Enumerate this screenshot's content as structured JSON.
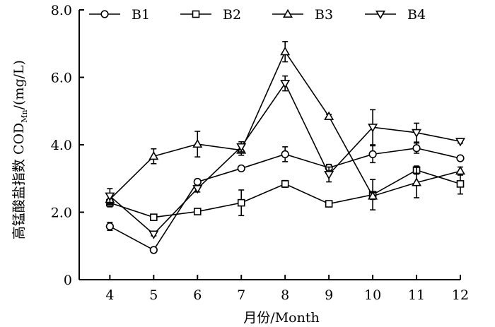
{
  "chart_data": {
    "type": "line",
    "title": "",
    "xlabel": "月份/Month",
    "ylabel": {
      "main": "高锰酸盐指数 COD",
      "sub": "Mn",
      "unit": "/(mg/L)"
    },
    "x": [
      4,
      5,
      6,
      7,
      8,
      9,
      10,
      11,
      12
    ],
    "x_tick_labels": [
      "4",
      "5",
      "6",
      "7",
      "8",
      "9",
      "10",
      "11",
      "12"
    ],
    "xlim": [
      3.3,
      12
    ],
    "ylim": [
      0,
      8
    ],
    "y_ticks": [
      0,
      2,
      4,
      6,
      8
    ],
    "y_tick_labels": [
      "0",
      "2.0",
      "4.0",
      "6.0",
      "8.0"
    ],
    "grid": false,
    "legend_position": "top",
    "series": [
      {
        "name": "B1",
        "marker": "circle",
        "values": [
          1.58,
          0.88,
          2.9,
          3.3,
          3.72,
          3.32,
          3.72,
          3.9,
          3.6
        ],
        "errors": [
          0.12,
          0.04,
          0.08,
          0.05,
          0.22,
          0.1,
          0.25,
          0.15,
          0.05
        ]
      },
      {
        "name": "B2",
        "marker": "square",
        "values": [
          2.28,
          1.85,
          2.02,
          2.28,
          2.84,
          2.25,
          2.52,
          3.25,
          2.84
        ],
        "errors": [
          0.12,
          0.08,
          0.06,
          0.38,
          0.1,
          0.06,
          0.45,
          0.12,
          0.3
        ]
      },
      {
        "name": "B3",
        "marker": "triangle-up",
        "values": [
          2.38,
          3.66,
          4.02,
          3.84,
          6.76,
          4.84,
          2.48,
          2.88,
          3.22
        ],
        "errors": [
          0.15,
          0.22,
          0.38,
          0.15,
          0.3,
          0.06,
          0.1,
          0.45,
          0.12
        ]
      },
      {
        "name": "B4",
        "marker": "triangle-down",
        "values": [
          2.48,
          1.35,
          2.7,
          3.94,
          5.82,
          3.12,
          4.52,
          4.36,
          4.1
        ],
        "errors": [
          0.22,
          0.05,
          0.1,
          0.15,
          0.22,
          0.22,
          0.52,
          0.28,
          0.05
        ]
      }
    ]
  }
}
